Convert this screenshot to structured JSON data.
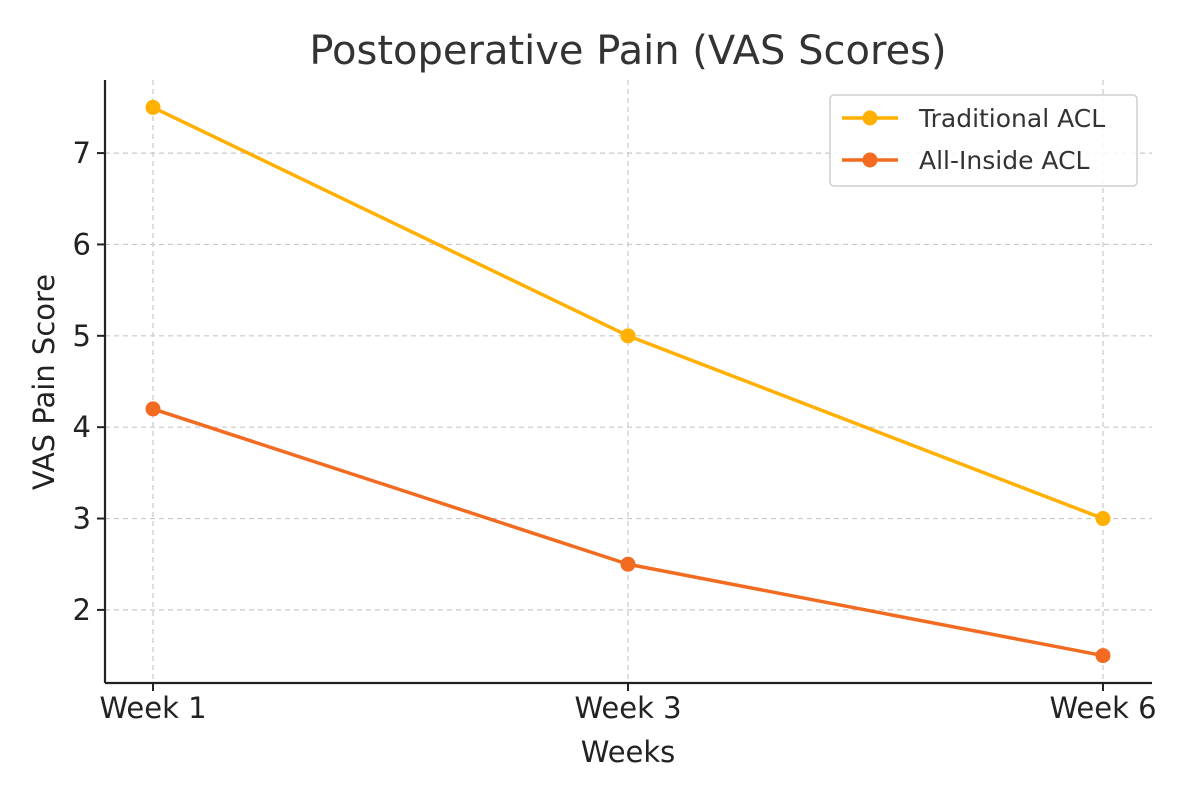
{
  "chart_data": {
    "type": "line",
    "title": "Postoperative Pain (VAS Scores)",
    "xlabel": "Weeks",
    "ylabel": "VAS Pain Score",
    "categories": [
      "Week 1",
      "Week 3",
      "Week 6"
    ],
    "ylim": [
      1.2,
      7.8
    ],
    "yticks": [
      2,
      3,
      4,
      5,
      6,
      7
    ],
    "grid": true,
    "legend_position": "top-right",
    "series": [
      {
        "name": "Traditional ACL",
        "values": [
          7.5,
          5.0,
          3.0
        ],
        "color": "#FFB000"
      },
      {
        "name": "All-Inside ACL",
        "values": [
          4.2,
          2.5,
          1.5
        ],
        "color": "#F26B21"
      }
    ]
  }
}
